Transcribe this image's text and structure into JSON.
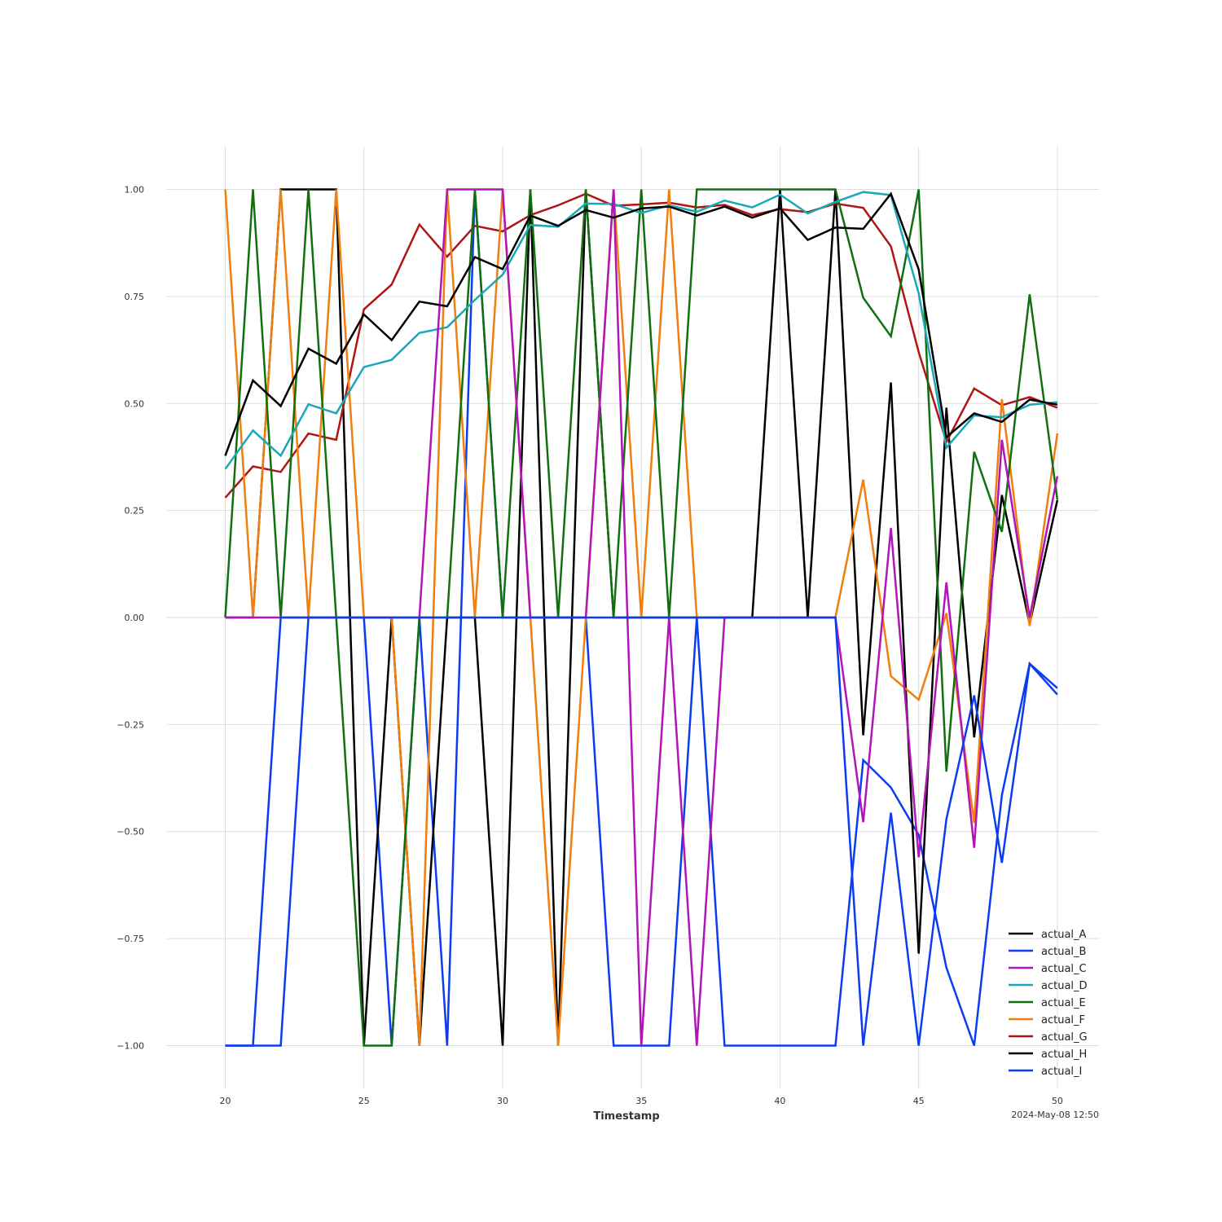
{
  "chart_data": {
    "type": "line",
    "xlabel": "Timestamp",
    "ylabel": "",
    "timestamp_note": "2024-May-08 12:50",
    "xlim": [
      17.9,
      51.5
    ],
    "ylim": [
      -1.1,
      1.1
    ],
    "x_ticks": [
      20,
      25,
      30,
      35,
      40,
      45,
      50
    ],
    "x_tick_labels": [
      "20",
      "25",
      "30",
      "35",
      "40",
      "45",
      "50"
    ],
    "y_ticks": [
      -1.0,
      -0.75,
      -0.5,
      -0.25,
      0.0,
      0.25,
      0.5,
      0.75,
      1.0
    ],
    "y_tick_labels": [
      "−1.00",
      "−0.75",
      "−0.50",
      "−0.25",
      "0.00",
      "0.25",
      "0.50",
      "0.75",
      "1.00"
    ],
    "grid": true,
    "legend_position": "bottom-right",
    "x": [
      20,
      21,
      22,
      23,
      24,
      25,
      26,
      27,
      28,
      29,
      30,
      31,
      32,
      33,
      34,
      35,
      36,
      37,
      38,
      39,
      40,
      41,
      42,
      43,
      44,
      45,
      46,
      47,
      48,
      49,
      50
    ],
    "series": [
      {
        "name": "actual_I",
        "color": "#0b3cf0",
        "values": [
          -1,
          -1,
          -1,
          0,
          0,
          0,
          -1,
          0,
          -1,
          1,
          0,
          0,
          0,
          0,
          -1,
          -1,
          -1,
          0,
          -1,
          -1,
          -1,
          -1,
          -1,
          -0.333,
          -0.397,
          -0.508,
          -0.818,
          -1,
          -0.415,
          -0.108,
          -0.18
        ]
      },
      {
        "name": "actual_H",
        "color": "#000000",
        "values": [
          0,
          0,
          1,
          1,
          1,
          -1,
          0,
          -1,
          0,
          0,
          -1,
          1,
          -1,
          1,
          0,
          0,
          0,
          0,
          0,
          0,
          1,
          0,
          1,
          -0.275,
          0.549,
          -0.785,
          0.49,
          -0.28,
          0.286,
          -0.015,
          0.274
        ]
      },
      {
        "name": "actual_G",
        "color": "#b01515",
        "values": [
          0.28,
          0.353,
          0.34,
          0.43,
          0.415,
          0.72,
          0.778,
          0.918,
          0.843,
          0.915,
          0.902,
          0.94,
          0.963,
          0.99,
          0.962,
          0.965,
          0.969,
          0.958,
          0.964,
          0.94,
          0.954,
          0.947,
          0.967,
          0.957,
          0.867,
          0.62,
          0.41,
          0.535,
          0.496,
          0.515,
          0.49
        ]
      },
      {
        "name": "actual_F",
        "color": "#f07f10",
        "values": [
          1,
          0,
          1,
          0,
          1,
          0,
          0,
          -1,
          1,
          0,
          1,
          0,
          -1,
          0,
          1,
          0,
          1,
          0,
          0,
          0,
          0,
          0,
          0,
          0.322,
          -0.137,
          -0.192,
          0.01,
          -0.48,
          0.51,
          -0.02,
          0.43
        ]
      },
      {
        "name": "actual_E",
        "color": "#107010",
        "values": [
          0,
          1,
          0,
          1,
          0,
          -1,
          -1,
          0,
          0,
          1,
          0,
          1,
          0,
          1,
          0,
          1,
          0,
          1,
          1,
          1,
          1,
          1,
          1,
          0.747,
          0.657,
          1,
          -0.36,
          0.387,
          0.2,
          0.755,
          0.275
        ]
      },
      {
        "name": "actual_D",
        "color": "#19a8b8",
        "values": [
          0.347,
          0.437,
          0.378,
          0.498,
          0.477,
          0.585,
          0.602,
          0.665,
          0.678,
          0.742,
          0.801,
          0.917,
          0.913,
          0.967,
          0.966,
          0.945,
          0.963,
          0.948,
          0.974,
          0.958,
          0.988,
          0.944,
          0.971,
          0.994,
          0.987,
          0.757,
          0.397,
          0.472,
          0.468,
          0.497,
          0.503
        ]
      },
      {
        "name": "actual_C",
        "color": "#b015b8",
        "values": [
          0,
          0,
          0,
          0,
          0,
          0,
          0,
          0,
          1,
          1,
          1,
          0,
          0,
          0,
          1,
          -1,
          0,
          -1,
          0,
          0,
          0,
          0,
          0,
          -0.478,
          0.209,
          -0.56,
          0.082,
          -0.538,
          0.415,
          0,
          0.33
        ]
      },
      {
        "name": "actual_B",
        "color": "#0b3cf0",
        "values": [
          -1,
          -1,
          0,
          0,
          0,
          0,
          0,
          0,
          0,
          0,
          0,
          0,
          0,
          0,
          0,
          0,
          0,
          0,
          0,
          0,
          0,
          0,
          0,
          -1,
          -0.456,
          -1,
          -0.471,
          -0.182,
          -0.573,
          -0.108,
          -0.165
        ]
      },
      {
        "name": "actual_A",
        "color": "#000000",
        "values": [
          0.378,
          0.554,
          0.494,
          0.628,
          0.593,
          0.708,
          0.648,
          0.738,
          0.727,
          0.842,
          0.814,
          0.939,
          0.915,
          0.952,
          0.934,
          0.956,
          0.96,
          0.939,
          0.96,
          0.934,
          0.956,
          0.882,
          0.911,
          0.908,
          0.99,
          0.813,
          0.421,
          0.477,
          0.457,
          0.509,
          0.497
        ]
      }
    ],
    "legend_order": [
      "actual_A",
      "actual_B",
      "actual_C",
      "actual_D",
      "actual_E",
      "actual_F",
      "actual_G",
      "actual_H",
      "actual_I"
    ]
  }
}
